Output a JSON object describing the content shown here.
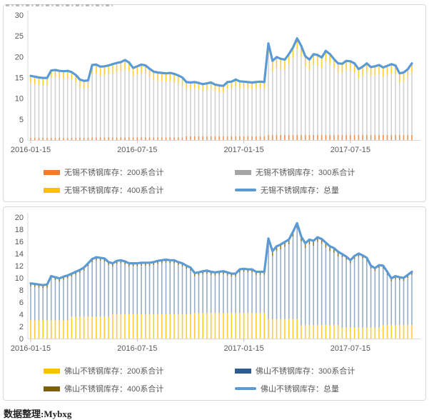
{
  "page": {
    "source_note": "数据整理:Mybxg"
  },
  "chart_data": [
    {
      "id": "wuxi-inventory",
      "type": "bar",
      "subtype": "stacked-thin-bars-with-total-line",
      "title": "",
      "unit_hint": "",
      "ylim": [
        0,
        30
      ],
      "y_ticks": [
        0,
        5,
        10,
        15,
        20,
        25,
        30
      ],
      "x_tick_labels": [
        "2016-01-15",
        "2016-07-15",
        "2017-01-15",
        "2017-07-15"
      ],
      "x_tick_weeks": [
        0,
        26,
        52,
        78
      ],
      "grid": false,
      "legend_position": "bottom",
      "series": [
        {
          "name": "无锡不锈钢库存：200系合计",
          "type": "bar",
          "color": "#ED7D31",
          "opacity": 0.85,
          "values": [
            [
              0.5,
              15
            ],
            [
              0.6,
              23
            ],
            [
              0.9,
              20
            ],
            [
              1.2,
              36
            ]
          ],
          "encoding": "run-length [value,count]"
        },
        {
          "name": "无锡不锈钢库存：300系合计",
          "type": "bar",
          "color": "#A5A5A5",
          "opacity": 0.5,
          "derived": true,
          "values_rule": "total_minus_200_and_400"
        },
        {
          "name": "无锡不锈钢库存：400系合计",
          "type": "bar",
          "color": "#FFC000",
          "opacity": 0.8,
          "values": [
            [
              1.8,
              15
            ],
            [
              2.2,
              10
            ],
            [
              2.0,
              13
            ],
            [
              1.6,
              20
            ],
            [
              2.5,
              16
            ],
            [
              2.2,
              20
            ]
          ],
          "encoding": "run-length [value,count]"
        },
        {
          "name": "无锡不锈钢库存：总量",
          "type": "line",
          "color": "#5B9BD5",
          "opacity": 1,
          "values": [
            15.4,
            15.2,
            15.0,
            14.9,
            14.9,
            16.7,
            16.8,
            16.6,
            16.5,
            16.6,
            16.3,
            15.6,
            14.5,
            14.2,
            14.3,
            18.0,
            18.1,
            17.6,
            17.7,
            17.9,
            18.2,
            18.5,
            18.7,
            19.2,
            18.6,
            17.3,
            17.7,
            18.1,
            17.9,
            17.1,
            16.4,
            16.2,
            16.1,
            16.0,
            16.1,
            15.9,
            15.5,
            15.0,
            13.9,
            13.8,
            13.9,
            13.7,
            13.4,
            13.6,
            13.8,
            13.3,
            13.1,
            13.0,
            13.9,
            14.0,
            14.5,
            14.1,
            14.0,
            13.9,
            13.8,
            13.9,
            14.0,
            13.9,
            23.2,
            19.0,
            19.9,
            19.5,
            19.3,
            20.6,
            22.2,
            24.4,
            22.6,
            20.1,
            19.3,
            20.6,
            20.4,
            19.8,
            21.4,
            20.6,
            19.4,
            18.4,
            18.3,
            19.0,
            18.9,
            18.4,
            17.0,
            17.6,
            18.4,
            17.5,
            17.7,
            18.0,
            17.4,
            17.8,
            18.2,
            17.9,
            16.0,
            16.2,
            17.0,
            18.4
          ]
        }
      ]
    },
    {
      "id": "foshan-inventory",
      "type": "bar",
      "subtype": "stacked-thin-bars-with-total-line",
      "title": "",
      "unit_hint": "",
      "ylim": [
        0,
        20
      ],
      "y_ticks": [
        0,
        2,
        4,
        6,
        8,
        10,
        12,
        14,
        16,
        18,
        20
      ],
      "x_tick_labels": [
        "2016-01-15",
        "2016-07-15",
        "2017-01-15",
        "2017-07-15"
      ],
      "x_tick_weeks": [
        0,
        26,
        52,
        78
      ],
      "grid": false,
      "legend_position": "bottom",
      "series": [
        {
          "name": "佛山不锈钢库存：200系合计",
          "type": "bar",
          "color": "#FFC000",
          "opacity": 0.8,
          "values": [
            [
              3.0,
              10
            ],
            [
              3.6,
              10
            ],
            [
              4.0,
              20
            ],
            [
              4.2,
              18
            ],
            [
              3.2,
              8
            ],
            [
              2.2,
              10
            ],
            [
              1.8,
              10
            ],
            [
              2.2,
              8
            ]
          ],
          "encoding": "run-length [value,count]"
        },
        {
          "name": "佛山不锈钢库存：300系合计",
          "type": "bar",
          "color": "#2F5B8F",
          "opacity": 0.5,
          "derived": true,
          "values_rule": "total_minus_200_and_400"
        },
        {
          "name": "佛山不锈钢库存：400系合计",
          "type": "bar",
          "color": "#7F6000",
          "opacity": 0.85,
          "values": [
            [
              0.5,
              58
            ],
            [
              0.8,
              18
            ],
            [
              0.5,
              18
            ]
          ],
          "encoding": "run-length [value,count]"
        },
        {
          "name": "佛山不锈钢库存：总量",
          "type": "line",
          "color": "#5B9BD5",
          "opacity": 1,
          "values": [
            9.1,
            9.0,
            8.9,
            8.8,
            8.9,
            10.3,
            10.1,
            9.9,
            10.2,
            10.4,
            10.7,
            11.0,
            11.3,
            11.7,
            12.4,
            13.1,
            13.4,
            13.3,
            13.2,
            12.6,
            12.4,
            12.8,
            12.9,
            12.7,
            12.4,
            12.4,
            12.4,
            12.5,
            12.5,
            12.5,
            12.6,
            12.8,
            12.9,
            13.0,
            12.9,
            12.9,
            12.6,
            12.4,
            12.0,
            11.7,
            10.8,
            10.9,
            11.1,
            11.2,
            11.0,
            10.9,
            11.0,
            11.1,
            10.9,
            10.7,
            10.7,
            11.4,
            11.5,
            11.4,
            11.4,
            11.0,
            11.0,
            11.0,
            16.5,
            14.4,
            15.2,
            15.5,
            15.9,
            16.3,
            17.6,
            19.0,
            16.8,
            15.7,
            16.3,
            16.1,
            16.7,
            16.4,
            15.8,
            15.2,
            14.9,
            14.3,
            13.9,
            13.5,
            12.9,
            13.6,
            14.0,
            13.7,
            13.3,
            12.0,
            11.6,
            12.1,
            12.0,
            11.0,
            9.9,
            10.3,
            10.1,
            10.0,
            10.5,
            11.0
          ]
        }
      ]
    }
  ]
}
